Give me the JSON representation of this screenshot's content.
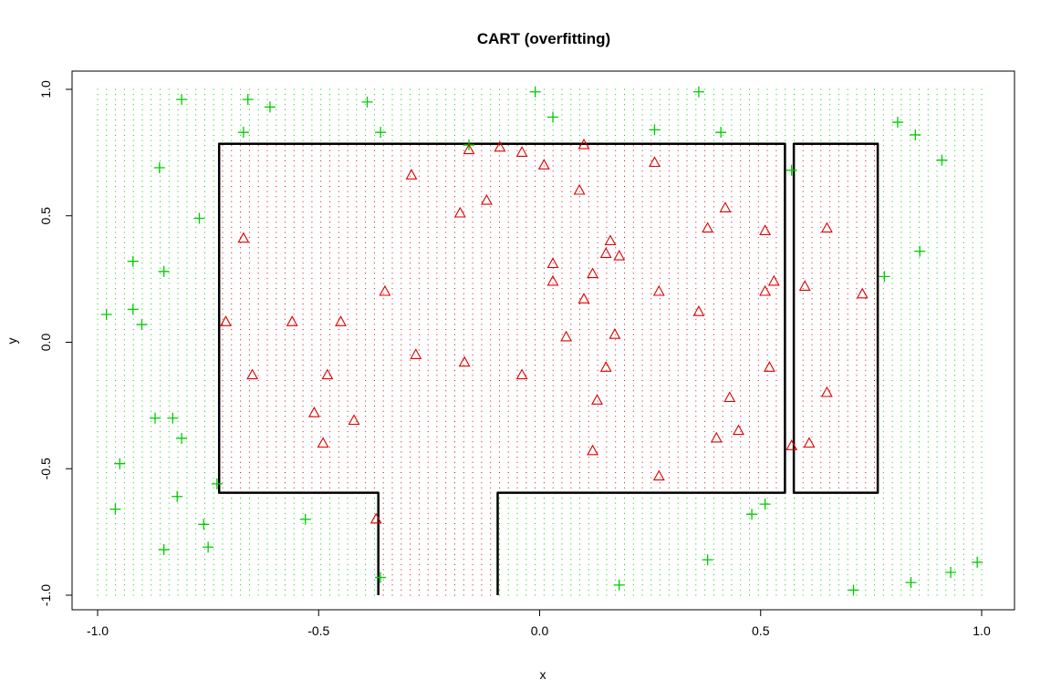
{
  "chart_data": {
    "type": "scatter",
    "title": "CART (overfitting)",
    "xlabel": "x",
    "ylabel": "y",
    "xlim": [
      -1.0,
      1.0
    ],
    "ylim": [
      -1.0,
      1.0
    ],
    "x_ticks": [
      "-1.0",
      "-0.5",
      "0.0",
      "0.5",
      "1.0"
    ],
    "y_ticks": [
      "-1.0",
      "-0.5",
      "0.0",
      "0.5",
      "1.0"
    ],
    "colors": {
      "class_plus": "#00cc00",
      "class_triangle": "#dd0000",
      "boundary": "#000000"
    },
    "series": [
      {
        "marker": "plus",
        "color": "#00cc00",
        "points": [
          [
            -0.98,
            0.11
          ],
          [
            -0.96,
            -0.66
          ],
          [
            -0.95,
            -0.48
          ],
          [
            -0.92,
            0.32
          ],
          [
            -0.92,
            0.13
          ],
          [
            -0.9,
            0.07
          ],
          [
            -0.87,
            -0.3
          ],
          [
            -0.86,
            0.69
          ],
          [
            -0.85,
            0.28
          ],
          [
            -0.85,
            -0.82
          ],
          [
            -0.83,
            -0.3
          ],
          [
            -0.82,
            -0.61
          ],
          [
            -0.81,
            -0.38
          ],
          [
            -0.81,
            0.96
          ],
          [
            -0.77,
            0.49
          ],
          [
            -0.76,
            -0.72
          ],
          [
            -0.75,
            -0.81
          ],
          [
            -0.73,
            -0.56
          ],
          [
            -0.67,
            0.83
          ],
          [
            -0.66,
            0.96
          ],
          [
            -0.61,
            0.93
          ],
          [
            -0.53,
            -0.7
          ],
          [
            -0.39,
            0.95
          ],
          [
            -0.36,
            0.83
          ],
          [
            -0.36,
            -0.93
          ],
          [
            -0.16,
            0.78
          ],
          [
            -0.01,
            0.99
          ],
          [
            0.03,
            0.89
          ],
          [
            0.18,
            -0.96
          ],
          [
            0.26,
            0.84
          ],
          [
            0.36,
            0.99
          ],
          [
            0.38,
            -0.86
          ],
          [
            0.41,
            0.83
          ],
          [
            0.48,
            -0.68
          ],
          [
            0.51,
            -0.64
          ],
          [
            0.57,
            0.68
          ],
          [
            0.71,
            -0.98
          ],
          [
            0.78,
            0.26
          ],
          [
            0.81,
            0.87
          ],
          [
            0.84,
            -0.95
          ],
          [
            0.85,
            0.82
          ],
          [
            0.86,
            0.36
          ],
          [
            0.91,
            0.72
          ],
          [
            0.93,
            -0.91
          ],
          [
            0.99,
            -0.87
          ]
        ]
      },
      {
        "marker": "triangle",
        "color": "#dd0000",
        "points": [
          [
            -0.71,
            0.08
          ],
          [
            -0.67,
            0.41
          ],
          [
            -0.65,
            -0.13
          ],
          [
            -0.56,
            0.08
          ],
          [
            -0.51,
            -0.28
          ],
          [
            -0.49,
            -0.4
          ],
          [
            -0.48,
            -0.13
          ],
          [
            -0.45,
            0.08
          ],
          [
            -0.42,
            -0.31
          ],
          [
            -0.37,
            -0.7
          ],
          [
            -0.35,
            0.2
          ],
          [
            -0.29,
            0.66
          ],
          [
            -0.28,
            -0.05
          ],
          [
            -0.18,
            0.51
          ],
          [
            -0.17,
            -0.08
          ],
          [
            -0.16,
            0.76
          ],
          [
            -0.12,
            0.56
          ],
          [
            -0.09,
            0.77
          ],
          [
            -0.04,
            0.75
          ],
          [
            -0.04,
            -0.13
          ],
          [
            0.01,
            0.7
          ],
          [
            0.03,
            0.31
          ],
          [
            0.03,
            0.24
          ],
          [
            0.06,
            0.02
          ],
          [
            0.09,
            0.6
          ],
          [
            0.1,
            0.78
          ],
          [
            0.1,
            0.17
          ],
          [
            0.12,
            0.27
          ],
          [
            0.12,
            -0.43
          ],
          [
            0.13,
            -0.23
          ],
          [
            0.15,
            0.35
          ],
          [
            0.15,
            -0.1
          ],
          [
            0.16,
            0.4
          ],
          [
            0.17,
            0.03
          ],
          [
            0.18,
            0.34
          ],
          [
            0.26,
            0.71
          ],
          [
            0.27,
            0.2
          ],
          [
            0.27,
            -0.53
          ],
          [
            0.36,
            0.12
          ],
          [
            0.38,
            0.45
          ],
          [
            0.4,
            -0.38
          ],
          [
            0.42,
            0.53
          ],
          [
            0.43,
            -0.22
          ],
          [
            0.45,
            -0.35
          ],
          [
            0.51,
            0.44
          ],
          [
            0.51,
            0.2
          ],
          [
            0.52,
            -0.1
          ],
          [
            0.53,
            0.24
          ],
          [
            0.57,
            -0.41
          ],
          [
            0.6,
            0.22
          ],
          [
            0.61,
            -0.4
          ],
          [
            0.65,
            0.45
          ],
          [
            0.65,
            -0.2
          ],
          [
            0.73,
            0.19
          ]
        ]
      }
    ],
    "decision_regions": {
      "fill_grid": true,
      "triangle_regions": [
        {
          "x": [
            -0.725,
            0.555
          ],
          "y": [
            -0.595,
            0.785
          ]
        },
        {
          "x": [
            -0.365,
            -0.095
          ],
          "y": [
            -1.0,
            -0.595
          ]
        },
        {
          "x": [
            0.575,
            0.765
          ],
          "y": [
            -0.595,
            0.785
          ]
        }
      ]
    }
  }
}
